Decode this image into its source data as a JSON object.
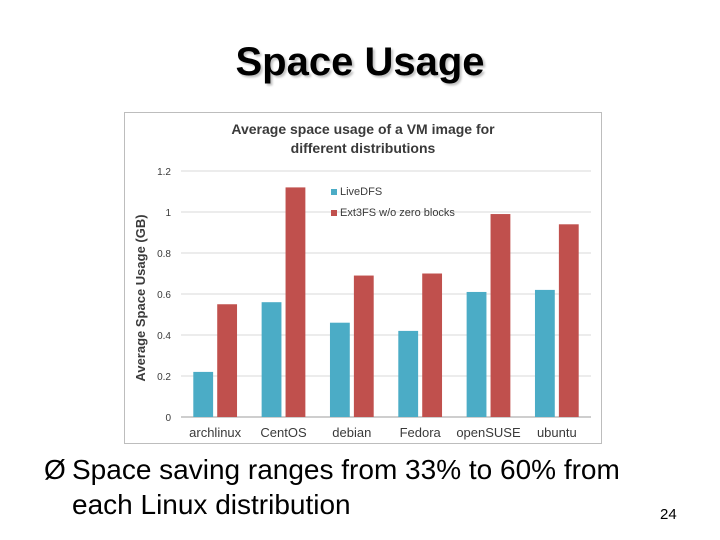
{
  "slide": {
    "title": "Space Usage",
    "bullet_marker": "Ø",
    "bullet_line1": "Space saving ranges from 33% to 60% from",
    "bullet_line2": "each Linux distribution",
    "page_number": "24"
  },
  "chart_data": {
    "type": "bar",
    "title_line1": "Average space usage of a VM image for",
    "title_line2": "different distributions",
    "ylabel": "Average Space Usage (GB)",
    "xlabel": "",
    "categories": [
      "archlinux",
      "CentOS",
      "debian",
      "Fedora",
      "openSUSE",
      "ubuntu"
    ],
    "series": [
      {
        "name": "LiveDFS",
        "color": "#4bacc6",
        "values": [
          0.22,
          0.56,
          0.46,
          0.42,
          0.61,
          0.62
        ]
      },
      {
        "name": "Ext3FS w/o zero blocks",
        "color": "#c0504d",
        "values": [
          0.55,
          1.12,
          0.69,
          0.7,
          0.99,
          0.94
        ]
      }
    ],
    "ylim": [
      0,
      1.2
    ],
    "yticks": [
      0,
      0.2,
      0.4,
      0.6,
      0.8,
      1,
      1.2
    ],
    "ytick_labels": [
      "0",
      "0.2",
      "0.4",
      "0.6",
      "0.8",
      "1",
      "1.2"
    ],
    "grid": true,
    "legend_position": "top-left inside plot"
  }
}
